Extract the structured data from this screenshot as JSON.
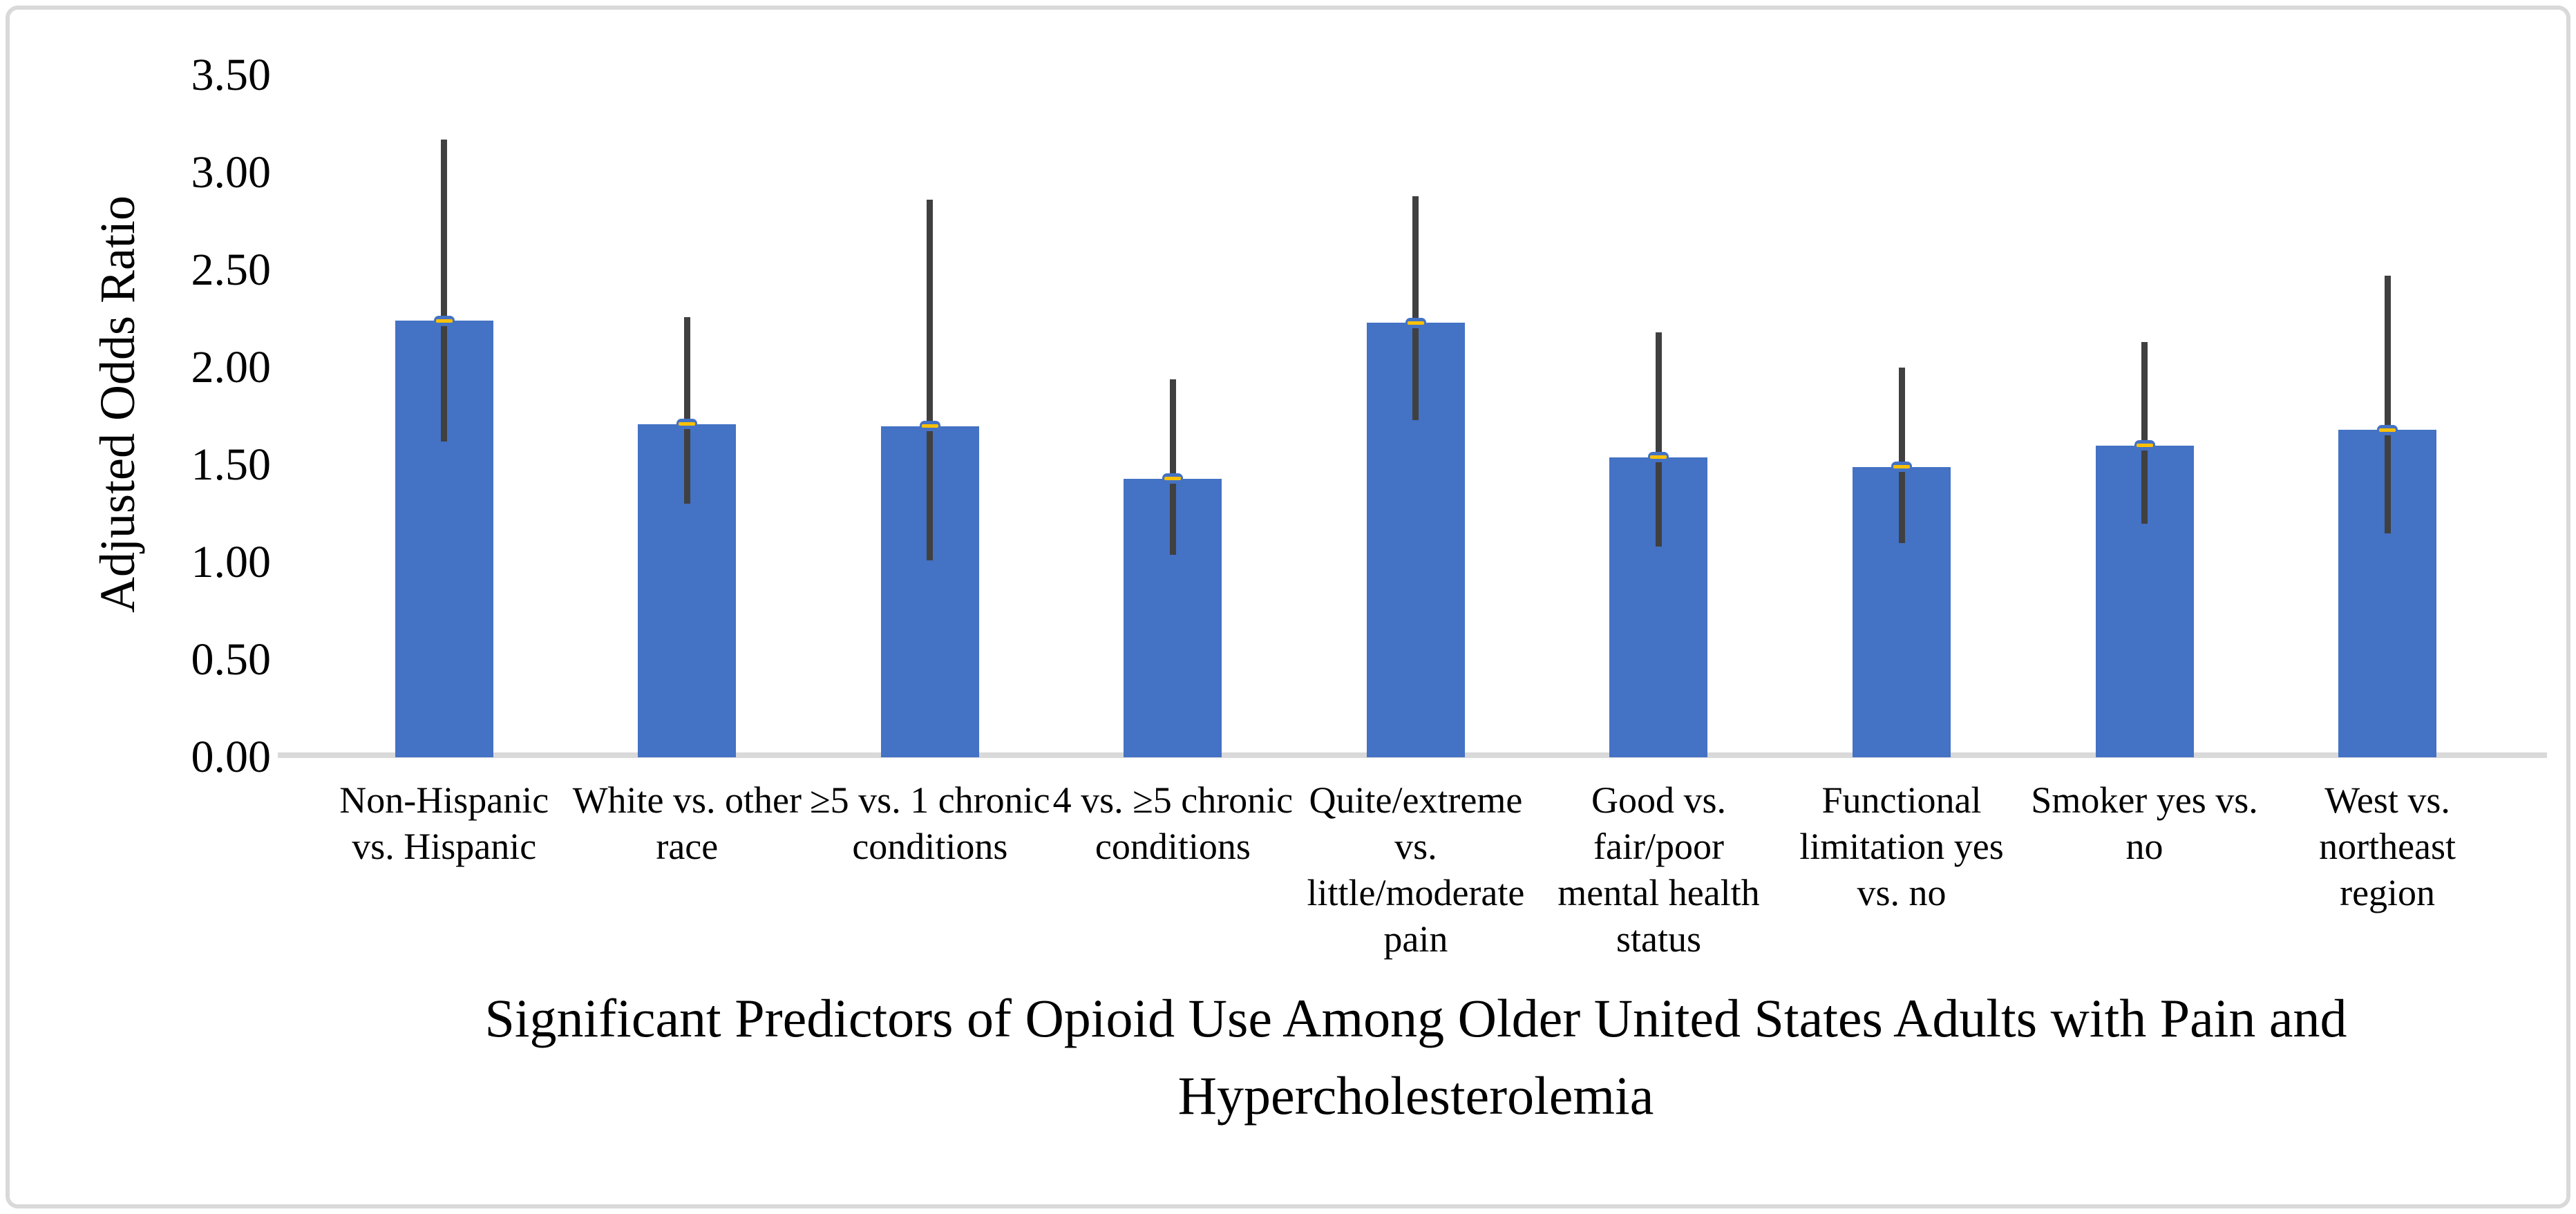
{
  "chart_data": {
    "type": "bar",
    "title": "Significant Predictors of Opioid Use Among Older United States Adults with Pain and Hypercholesterolemia",
    "title_lines": [
      "Significant Predictors of Opioid Use Among Older United States Adults with Pain and",
      "Hypercholesterolemia"
    ],
    "xlabel": "",
    "ylabel": "Adjusted Odds Ratio",
    "ylim": [
      0,
      3.5
    ],
    "ytick_step": 0.5,
    "yticks": [
      "3.50",
      "3.00",
      "2.50",
      "2.00",
      "1.50",
      "1.00",
      "0.50",
      "0.00"
    ],
    "ytick_values": [
      3.5,
      3.0,
      2.5,
      2.0,
      1.5,
      1.0,
      0.5,
      0.0
    ],
    "grid": false,
    "legend_position": "none",
    "bar_color": "#4472C4",
    "error_bar_color": "#404040",
    "marker_dash_color": "#FFC000",
    "axis_line_color": "#D9D9D9",
    "categories": [
      "Non-Hispanic vs. Hispanic",
      "White vs. other race",
      "≥5 vs. 1 chronic conditions",
      "4 vs. ≥5 chronic conditions",
      "Quite/extreme vs. little/moderate pain",
      "Good vs. fair/poor mental health status",
      "Functional limitation yes vs. no",
      "Smoker yes vs. no",
      "West vs. northeast region"
    ],
    "category_lines": [
      [
        "Non-Hispanic",
        "vs. Hispanic"
      ],
      [
        "White vs. other",
        "race"
      ],
      [
        "≥5 vs. 1 chronic",
        "conditions"
      ],
      [
        "4 vs. ≥5 chronic",
        "conditions"
      ],
      [
        "Quite/extreme",
        "vs.",
        "little/moderate",
        "pain"
      ],
      [
        "Good vs.",
        "fair/poor",
        "mental health",
        "status"
      ],
      [
        "Functional",
        "limitation yes",
        "vs. no"
      ],
      [
        "Smoker yes vs.",
        "no"
      ],
      [
        "West vs.",
        "northeast",
        "region"
      ]
    ],
    "series": [
      {
        "name": "Adjusted Odds Ratio",
        "values": [
          2.24,
          1.71,
          1.7,
          1.43,
          2.23,
          1.54,
          1.49,
          1.6,
          1.68
        ],
        "ci_low": [
          1.62,
          1.3,
          1.01,
          1.04,
          1.73,
          1.08,
          1.1,
          1.2,
          1.15
        ],
        "ci_high": [
          3.17,
          2.26,
          2.86,
          1.94,
          2.88,
          2.18,
          2.0,
          2.13,
          2.47
        ]
      }
    ]
  }
}
